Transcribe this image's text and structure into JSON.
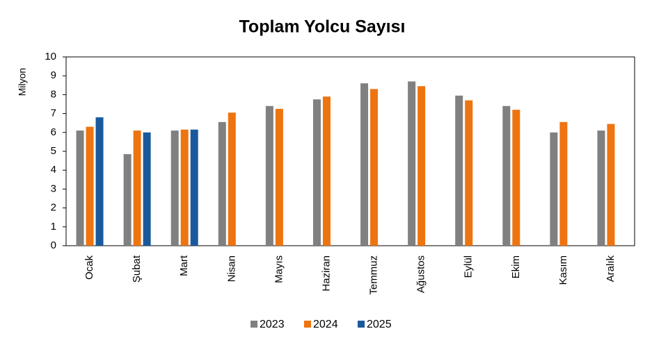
{
  "chart_data": {
    "type": "bar",
    "title": "Toplam Yolcu Sayısı",
    "y_label": "Milyon",
    "categories": [
      "Ocak",
      "Şubat",
      "Mart",
      "Nisan",
      "Mayıs",
      "Haziran",
      "Temmuz",
      "Ağustos",
      "Eylül",
      "Ekim",
      "Kasım",
      "Aralık"
    ],
    "series": [
      {
        "name": "2023",
        "color": "#808080",
        "values": [
          6.1,
          4.85,
          6.1,
          6.55,
          7.4,
          7.75,
          8.6,
          8.7,
          7.95,
          7.4,
          6.0,
          6.1
        ]
      },
      {
        "name": "2024",
        "color": "#ee7410",
        "values": [
          6.3,
          6.1,
          6.15,
          7.05,
          7.25,
          7.9,
          8.3,
          8.45,
          7.7,
          7.2,
          6.55,
          6.45
        ]
      },
      {
        "name": "2025",
        "color": "#1a5a9c",
        "values": [
          6.8,
          6.0,
          6.15,
          null,
          null,
          null,
          null,
          null,
          null,
          null,
          null,
          null
        ]
      }
    ],
    "ylim": [
      0,
      10
    ],
    "yticks": [
      0,
      1,
      2,
      3,
      4,
      5,
      6,
      7,
      8,
      9,
      10
    ],
    "legend": "bottom"
  }
}
